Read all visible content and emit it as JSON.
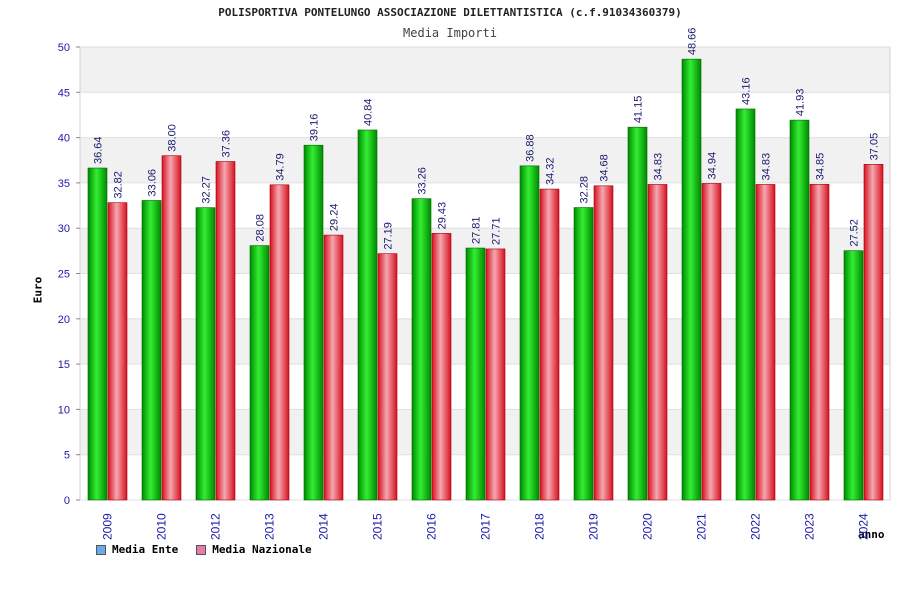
{
  "chart_data": {
    "type": "bar",
    "title": "POLISPORTIVA PONTELUNGO ASSOCIAZIONE DILETTANTISTICA (c.f.91034360379)",
    "subtitle": "Media Importi",
    "xlabel": "anno",
    "ylabel": "Euro",
    "ylim": [
      0,
      50
    ],
    "yticks": [
      0,
      5,
      10,
      15,
      20,
      25,
      30,
      35,
      40,
      45,
      50
    ],
    "grid": true,
    "legend_position": "bottom-left",
    "categories": [
      "2009",
      "2010",
      "2012",
      "2013",
      "2014",
      "2015",
      "2016",
      "2017",
      "2018",
      "2019",
      "2020",
      "2021",
      "2022",
      "2023",
      "2024"
    ],
    "series": [
      {
        "name": "Media Ente",
        "color": "#00a000",
        "legend_color": "#6fa8e8",
        "values": [
          36.64,
          33.06,
          32.27,
          28.08,
          39.16,
          40.84,
          33.26,
          27.81,
          36.88,
          32.28,
          41.15,
          48.66,
          43.16,
          41.93,
          27.52
        ],
        "labels": [
          "36.64",
          "33.06",
          "32.27",
          "28.08",
          "39.16",
          "40.84",
          "33.26",
          "27.81",
          "36.88",
          "32.28",
          "41.15",
          "48.66",
          "43.16",
          "41.93",
          "27.52"
        ]
      },
      {
        "name": "Media Nazionale",
        "color": "#e8192c",
        "legend_color": "#e87aa8",
        "values": [
          32.82,
          38.0,
          37.36,
          34.79,
          29.24,
          27.19,
          29.43,
          27.71,
          34.32,
          34.68,
          34.83,
          34.94,
          34.83,
          34.85,
          37.05
        ],
        "labels": [
          "32.82",
          "38.00",
          "37.36",
          "34.79",
          "29.24",
          "27.19",
          "29.43",
          "27.71",
          "34.32",
          "34.68",
          "34.83",
          "34.94",
          "34.83",
          "34.85",
          "37.05"
        ]
      }
    ]
  }
}
